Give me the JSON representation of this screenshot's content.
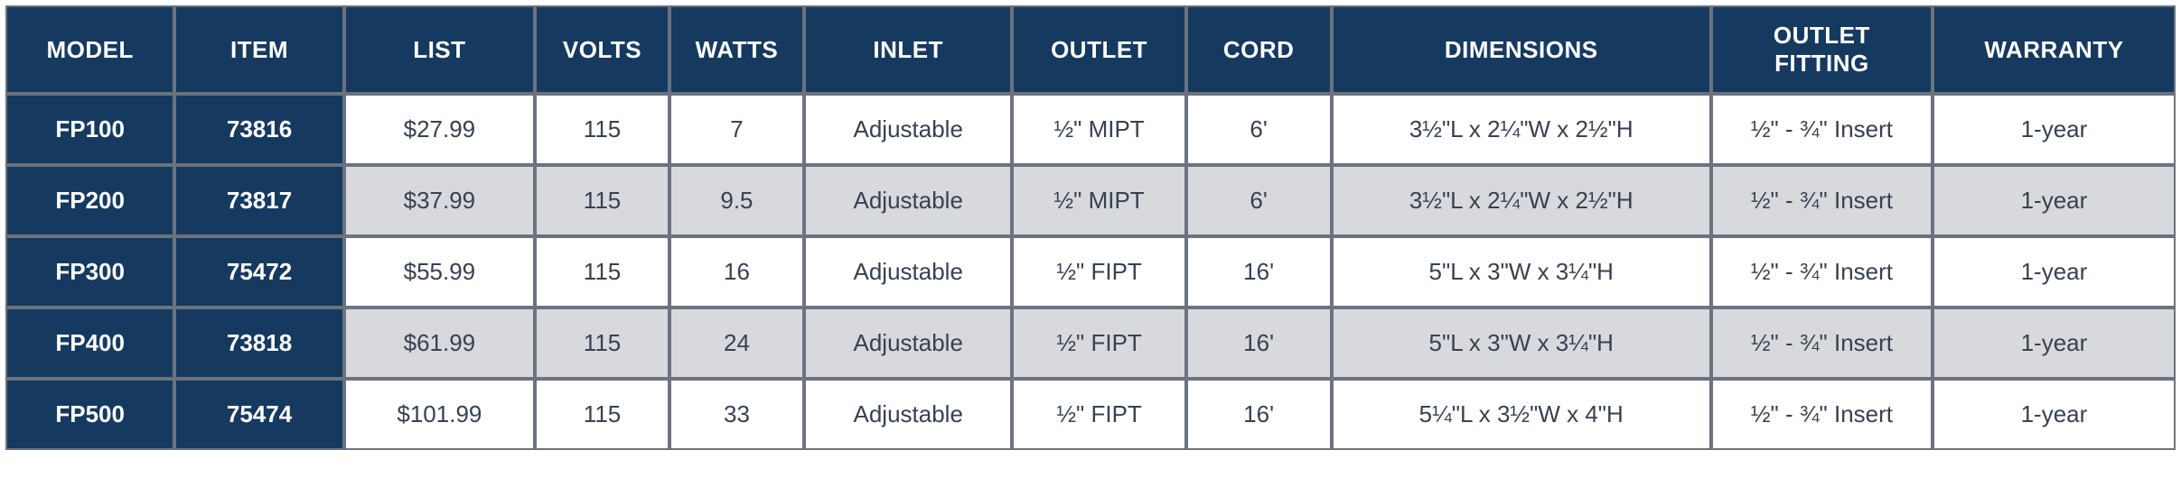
{
  "table": {
    "colors": {
      "header_bg": "#163a5f",
      "header_text": "#ffffff",
      "row_alt_bg": "#d7d9dc",
      "row_bg": "#ffffff",
      "cell_text": "#374151",
      "border": "#6b7280"
    },
    "typography": {
      "header_fontsize": 26,
      "cell_fontsize": 26,
      "header_weight": 700
    },
    "col_widths_pct": [
      7.8,
      7.8,
      8.8,
      6.2,
      6.2,
      9.6,
      8.0,
      6.7,
      17.5,
      10.2,
      11.2
    ],
    "columns": [
      "MODEL",
      "ITEM",
      "LIST",
      "VOLTS",
      "WATTS",
      "INLET",
      "OUTLET",
      "CORD",
      "DIMENSIONS",
      "OUTLET FITTING",
      "WARRANTY"
    ],
    "rows": [
      {
        "alt": false,
        "cells": [
          "FP100",
          "73816",
          "$27.99",
          "115",
          "7",
          "Adjustable",
          "½\" MIPT",
          "6'",
          "3½\"L x 2¼\"W x 2½\"H",
          "½\" - ¾\" Insert",
          "1-year"
        ]
      },
      {
        "alt": true,
        "cells": [
          "FP200",
          "73817",
          "$37.99",
          "115",
          "9.5",
          "Adjustable",
          "½\" MIPT",
          "6'",
          "3½\"L x 2¼\"W x 2½\"H",
          "½\" - ¾\" Insert",
          "1-year"
        ]
      },
      {
        "alt": false,
        "cells": [
          "FP300",
          "75472",
          "$55.99",
          "115",
          "16",
          "Adjustable",
          "½\" FIPT",
          "16'",
          "5\"L x 3\"W x 3¼\"H",
          "½\" - ¾\" Insert",
          "1-year"
        ]
      },
      {
        "alt": true,
        "cells": [
          "FP400",
          "73818",
          "$61.99",
          "115",
          "24",
          "Adjustable",
          "½\" FIPT",
          "16'",
          "5\"L x 3\"W x 3¼\"H",
          "½\" - ¾\" Insert",
          "1-year"
        ]
      },
      {
        "alt": false,
        "cells": [
          "FP500",
          "75474",
          "$101.99",
          "115",
          "33",
          "Adjustable",
          "½\" FIPT",
          "16'",
          "5¼\"L x 3½\"W x 4\"H",
          "½\" - ¾\" Insert",
          "1-year"
        ]
      }
    ],
    "emphasized_columns": [
      0,
      1
    ]
  }
}
